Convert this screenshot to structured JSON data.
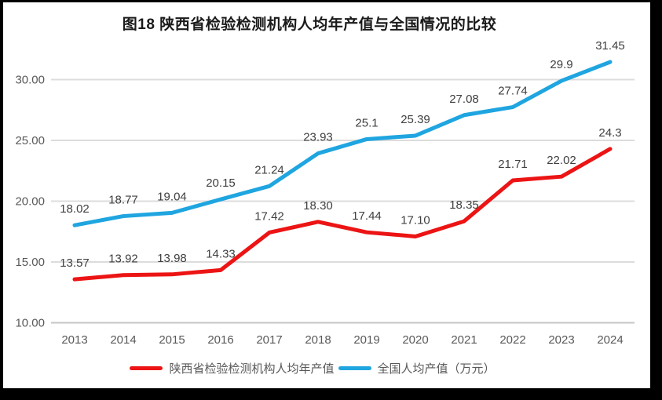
{
  "frame": {
    "background": "#000000",
    "panel_background": "#FFFFFF"
  },
  "chart_data": {
    "type": "line",
    "title": "图18 陕西省检验检测机构人均年产值与全国情况的比较",
    "categories": [
      "2013",
      "2014",
      "2015",
      "2016",
      "2017",
      "2018",
      "2019",
      "2020",
      "2021",
      "2022",
      "2023",
      "2024"
    ],
    "series": [
      {
        "name": "陕西省检验检测机构人均年产值",
        "color": "#EC1414",
        "values": [
          13.57,
          13.92,
          13.98,
          14.33,
          17.42,
          18.3,
          17.44,
          17.1,
          18.35,
          21.71,
          22.02,
          24.3
        ],
        "labels": [
          "13.57",
          "13.92",
          "13.98",
          "14.33",
          "17.42",
          "18.30",
          "17.44",
          "17.10",
          "18.35",
          "21.71",
          "22.02",
          "24.3"
        ]
      },
      {
        "name": "全国人均产值（万元）",
        "color": "#1FA5E0",
        "values": [
          18.02,
          18.77,
          19.04,
          20.15,
          21.24,
          23.93,
          25.1,
          25.39,
          27.08,
          27.74,
          29.9,
          31.45
        ],
        "labels": [
          "18.02",
          "18.77",
          "19.04",
          "20.15",
          "21.24",
          "23.93",
          "25.1",
          "25.39",
          "27.08",
          "27.74",
          "29.9",
          "31.45"
        ]
      }
    ],
    "y_axis": {
      "min": 10,
      "max": 30,
      "tick_step": 5,
      "tick_labels": [
        "10.00",
        "15.00",
        "20.00",
        "25.00",
        "30.00"
      ]
    },
    "x_axis": {
      "tick_labels": [
        "2013",
        "2014",
        "2015",
        "2016",
        "2017",
        "2018",
        "2019",
        "2020",
        "2021",
        "2022",
        "2023",
        "2024"
      ]
    },
    "grid": true,
    "legend_position": "bottom",
    "colors": {
      "gridline": "#DCDCDC",
      "axis_line": "#C6C6C6",
      "tick_text": "#595959",
      "data_label_text": "#3F3F3F",
      "title_text": "#1A1A1A",
      "legend_text": "#595959"
    }
  }
}
